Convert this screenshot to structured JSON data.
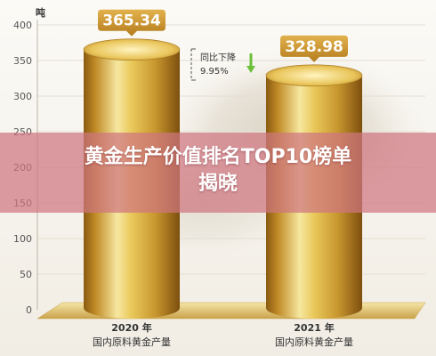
{
  "headline": {
    "line1": "黄金生产价值排名TOP10榜单",
    "line2": "揭晓"
  },
  "chart_data": {
    "type": "bar",
    "unit_label": "吨",
    "categories": [
      {
        "year": "2020 年",
        "desc": "国内原料黄金产量"
      },
      {
        "year": "2021 年",
        "desc": "国内原料黄金产量"
      }
    ],
    "values": [
      365.34,
      328.98
    ],
    "value_labels": [
      "365.34",
      "328.98"
    ],
    "ylim": [
      0,
      400
    ],
    "yticks": [
      0,
      50,
      100,
      150,
      200,
      250,
      300,
      350,
      400
    ],
    "grid": true,
    "annotation": {
      "line1": "同比下降",
      "line2": "9.95%"
    },
    "colors": {
      "bar_light": "#f6e7a0",
      "bar_mid": "#d8ad3a",
      "bar_dark": "#8a5a12",
      "label_bg": "#c8942c",
      "axis_text": "#555555",
      "arrow": "#6dbf3a"
    }
  }
}
